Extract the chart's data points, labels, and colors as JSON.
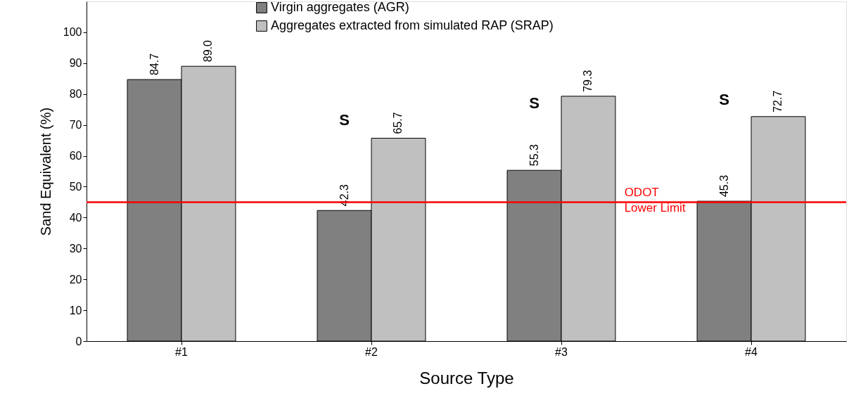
{
  "chart_data": {
    "type": "bar",
    "xlabel": "Source Type",
    "ylabel": "Sand Equivalent (%)",
    "categories": [
      "#1",
      "#2",
      "#3",
      "#4"
    ],
    "series": [
      {
        "name": "Virgin aggregates (AGR)",
        "color": "#808080",
        "values": [
          84.7,
          42.3,
          55.3,
          45.3
        ],
        "value_labels": [
          "84.7",
          "42.3",
          "55.3",
          "45.3"
        ]
      },
      {
        "name": "Aggregates extracted from simulated RAP (SRAP)",
        "color": "#c0c0c0",
        "values": [
          89.0,
          65.7,
          79.3,
          72.7
        ],
        "value_labels": [
          "89.0",
          "65.7",
          "79.3",
          "72.7"
        ]
      }
    ],
    "ylim": [
      0,
      110
    ],
    "yticks": [
      0,
      10,
      20,
      30,
      40,
      50,
      60,
      70,
      80,
      90,
      100
    ],
    "grid": false,
    "legend": "top",
    "ref_lines": [
      {
        "axis": "y",
        "value": 45,
        "label": "ODOT\nLower Limit",
        "color": "#ff0000"
      }
    ],
    "annotations": [
      "S",
      "S",
      "S"
    ]
  }
}
